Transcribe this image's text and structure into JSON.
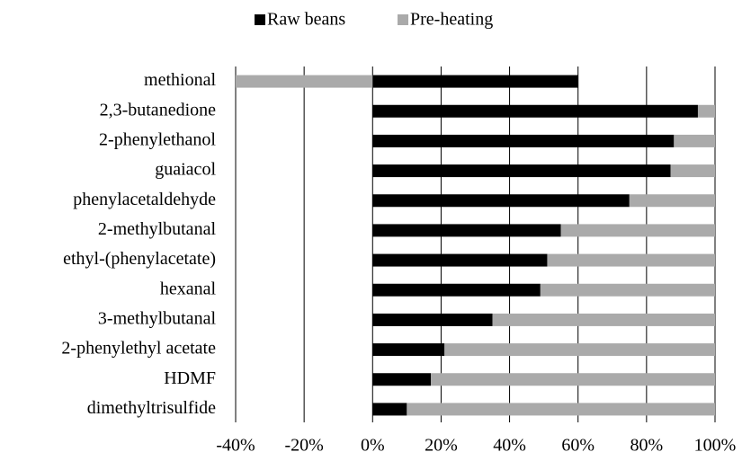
{
  "chart_data": {
    "type": "bar",
    "orientation": "horizontal",
    "stacked": true,
    "categories": [
      "methional",
      "2,3-butanedione",
      "2-phenylethanol",
      "guaiacol",
      "phenylacetaldehyde",
      "2-methylbutanal",
      "ethyl-(phenylacetate)",
      "hexanal",
      "3-methylbutanal",
      "2-phenylethyl acetate",
      "HDMF",
      "dimethyltrisulfide"
    ],
    "series": [
      {
        "name": "Raw beans",
        "color": "#000000",
        "values": [
          60,
          95,
          88,
          87,
          75,
          55,
          51,
          49,
          35,
          21,
          17,
          10
        ]
      },
      {
        "name": "Pre-heating",
        "color": "#aaaaaa",
        "values": [
          -40,
          5,
          12,
          13,
          25,
          45,
          49,
          51,
          65,
          79,
          83,
          90
        ]
      }
    ],
    "xlim": [
      -40,
      100
    ],
    "xticks": [
      {
        "value": -40,
        "label": "-40%"
      },
      {
        "value": -20,
        "label": "-20%"
      },
      {
        "value": 0,
        "label": "0%"
      },
      {
        "value": 20,
        "label": "20%"
      },
      {
        "value": 40,
        "label": "40%"
      },
      {
        "value": 60,
        "label": "60%"
      },
      {
        "value": 80,
        "label": "80%"
      },
      {
        "value": 100,
        "label": "100%"
      }
    ],
    "grid": true,
    "legend": "top"
  }
}
